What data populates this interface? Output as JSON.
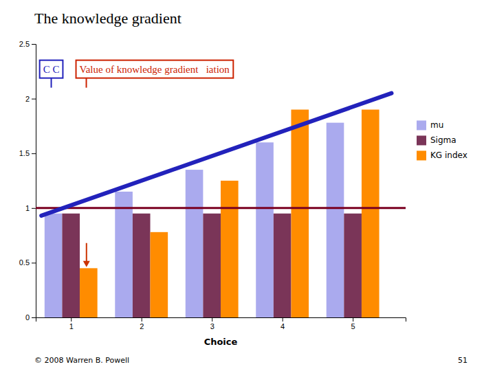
{
  "chart_data": {
    "type": "bar",
    "title": "The knowledge gradient",
    "x_label": "Choice",
    "x": [
      1,
      2,
      3,
      4,
      5
    ],
    "xlim": [
      0.5,
      5.75
    ],
    "xticks": [
      1,
      2,
      3,
      4,
      5
    ],
    "series": [
      {
        "name": "mu",
        "color": "#aaaaee",
        "values": [
          0.95,
          1.15,
          1.35,
          1.6,
          1.78
        ]
      },
      {
        "name": "Sigma",
        "color": "#7a3558",
        "values": [
          0.95,
          0.95,
          0.95,
          0.95,
          0.95
        ]
      },
      {
        "name": "KG index",
        "color": "#ff8c00",
        "values": [
          0.45,
          0.78,
          1.25,
          1.9,
          1.9
        ]
      }
    ],
    "ylim": [
      0,
      2.5
    ],
    "yticks": [
      0,
      0.5,
      1,
      1.5,
      2,
      2.5
    ],
    "legend": "right",
    "reference_lines": [
      {
        "y": 1.0,
        "color": "#7a0020"
      },
      {
        "x": [
          0.58,
          5.55
        ],
        "y": [
          0.93,
          2.05
        ],
        "color": "#2222bb"
      }
    ],
    "annotations": [
      {
        "text": "C C",
        "x": 0.72,
        "y": 2.27,
        "color": "#2222bb"
      },
      {
        "text": "Value of knowledge gradient   iation",
        "x": 1.12,
        "y": 2.27,
        "color": "#cc2200"
      }
    ],
    "arrows": [
      {
        "x": 1.22,
        "y_from": 0.68,
        "y_to": 0.46,
        "color": "#cc3300"
      }
    ],
    "footer": [
      "© 2008 Warren B. Powell",
      "51"
    ]
  }
}
